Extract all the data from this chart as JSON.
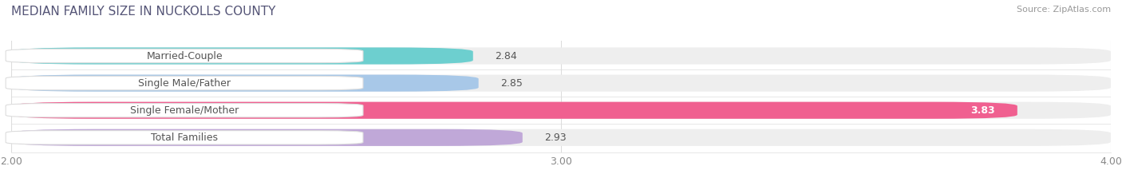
{
  "title": "MEDIAN FAMILY SIZE IN NUCKOLLS COUNTY",
  "source": "Source: ZipAtlas.com",
  "categories": [
    "Married-Couple",
    "Single Male/Father",
    "Single Female/Mother",
    "Total Families"
  ],
  "values": [
    2.84,
    2.85,
    3.83,
    2.93
  ],
  "bar_colors": [
    "#6dcfcf",
    "#a8c8e8",
    "#f06090",
    "#c0a8d8"
  ],
  "xmin": 2.0,
  "xmax": 4.0,
  "xticks": [
    2.0,
    3.0,
    4.0
  ],
  "xtick_labels": [
    "2.00",
    "3.00",
    "4.00"
  ],
  "label_fontsize": 9,
  "value_fontsize": 9,
  "title_fontsize": 11,
  "source_fontsize": 8,
  "bar_height": 0.62,
  "background_color": "#ffffff",
  "bar_bg_color": "#eeeeee"
}
